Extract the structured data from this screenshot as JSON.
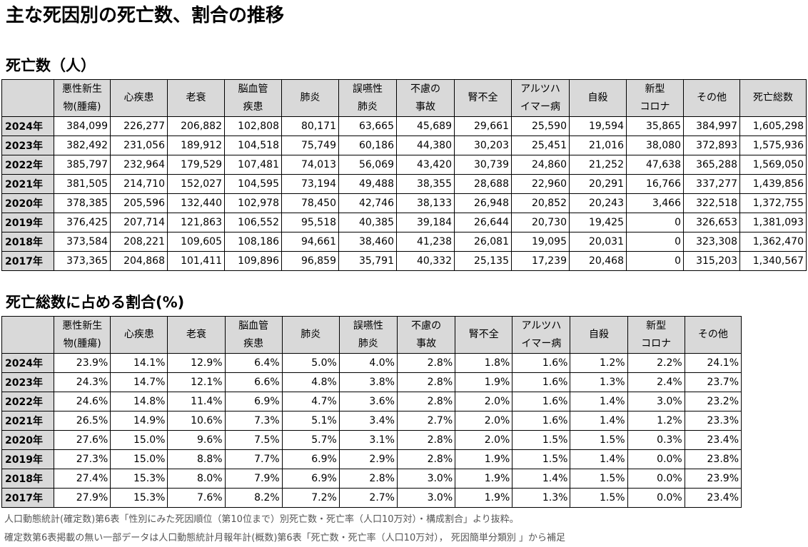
{
  "page": {
    "title": "主な死因別の死亡数、割合の推移"
  },
  "deaths_section": {
    "title": "死亡数（人）",
    "headers": [
      [
        "",
        ""
      ],
      [
        "悪性新生",
        "物(腫瘍)"
      ],
      [
        "心疾患",
        ""
      ],
      [
        "老衰",
        ""
      ],
      [
        "脳血管",
        "疾患"
      ],
      [
        "肺炎",
        ""
      ],
      [
        "誤嚥性",
        "肺炎"
      ],
      [
        "不慮の",
        "事故"
      ],
      [
        "腎不全",
        ""
      ],
      [
        "アルツハ",
        "イマー病"
      ],
      [
        "自殺",
        ""
      ],
      [
        "新型",
        "コロナ"
      ],
      [
        "その他",
        ""
      ],
      [
        "死亡総数",
        ""
      ]
    ],
    "rows": [
      {
        "year": "2024年",
        "values": [
          "384,099",
          "226,277",
          "206,882",
          "102,808",
          "80,171",
          "63,665",
          "45,689",
          "29,661",
          "25,590",
          "19,594",
          "35,865",
          "384,997",
          "1,605,298"
        ]
      },
      {
        "year": "2023年",
        "values": [
          "382,492",
          "231,056",
          "189,912",
          "104,518",
          "75,749",
          "60,186",
          "44,380",
          "30,203",
          "25,451",
          "21,016",
          "38,080",
          "372,893",
          "1,575,936"
        ]
      },
      {
        "year": "2022年",
        "values": [
          "385,797",
          "232,964",
          "179,529",
          "107,481",
          "74,013",
          "56,069",
          "43,420",
          "30,739",
          "24,860",
          "21,252",
          "47,638",
          "365,288",
          "1,569,050"
        ]
      },
      {
        "year": "2021年",
        "values": [
          "381,505",
          "214,710",
          "152,027",
          "104,595",
          "73,194",
          "49,488",
          "38,355",
          "28,688",
          "22,960",
          "20,291",
          "16,766",
          "337,277",
          "1,439,856"
        ]
      },
      {
        "year": "2020年",
        "values": [
          "378,385",
          "205,596",
          "132,440",
          "102,978",
          "78,450",
          "42,746",
          "38,133",
          "26,948",
          "20,852",
          "20,243",
          "3,466",
          "322,518",
          "1,372,755"
        ]
      },
      {
        "year": "2019年",
        "values": [
          "376,425",
          "207,714",
          "121,863",
          "106,552",
          "95,518",
          "40,385",
          "39,184",
          "26,644",
          "20,730",
          "19,425",
          "0",
          "326,653",
          "1,381,093"
        ]
      },
      {
        "year": "2018年",
        "values": [
          "373,584",
          "208,221",
          "109,605",
          "108,186",
          "94,661",
          "38,460",
          "41,238",
          "26,081",
          "19,095",
          "20,031",
          "0",
          "323,308",
          "1,362,470"
        ]
      },
      {
        "year": "2017年",
        "values": [
          "373,365",
          "204,868",
          "101,411",
          "109,896",
          "96,859",
          "35,791",
          "40,332",
          "25,135",
          "17,239",
          "20,468",
          "0",
          "315,203",
          "1,340,567"
        ]
      }
    ]
  },
  "ratio_section": {
    "title": "死亡総数に占める割合(%)",
    "headers": [
      [
        "",
        ""
      ],
      [
        "悪性新生",
        "物(腫瘍)"
      ],
      [
        "心疾患",
        ""
      ],
      [
        "老衰",
        ""
      ],
      [
        "脳血管",
        "疾患"
      ],
      [
        "肺炎",
        ""
      ],
      [
        "誤嚥性",
        "肺炎"
      ],
      [
        "不慮の",
        "事故"
      ],
      [
        "腎不全",
        ""
      ],
      [
        "アルツハ",
        "イマー病"
      ],
      [
        "自殺",
        ""
      ],
      [
        "新型",
        "コロナ"
      ],
      [
        "その他",
        ""
      ]
    ],
    "rows": [
      {
        "year": "2024年",
        "values": [
          "23.9%",
          "14.1%",
          "12.9%",
          "6.4%",
          "5.0%",
          "4.0%",
          "2.8%",
          "1.8%",
          "1.6%",
          "1.2%",
          "2.2%",
          "24.1%"
        ]
      },
      {
        "year": "2023年",
        "values": [
          "24.3%",
          "14.7%",
          "12.1%",
          "6.6%",
          "4.8%",
          "3.8%",
          "2.8%",
          "1.9%",
          "1.6%",
          "1.3%",
          "2.4%",
          "23.7%"
        ]
      },
      {
        "year": "2022年",
        "values": [
          "24.6%",
          "14.8%",
          "11.4%",
          "6.9%",
          "4.7%",
          "3.6%",
          "2.8%",
          "2.0%",
          "1.6%",
          "1.4%",
          "3.0%",
          "23.2%"
        ]
      },
      {
        "year": "2021年",
        "values": [
          "26.5%",
          "14.9%",
          "10.6%",
          "7.3%",
          "5.1%",
          "3.4%",
          "2.7%",
          "2.0%",
          "1.6%",
          "1.4%",
          "1.2%",
          "23.3%"
        ]
      },
      {
        "year": "2020年",
        "values": [
          "27.6%",
          "15.0%",
          "9.6%",
          "7.5%",
          "5.7%",
          "3.1%",
          "2.8%",
          "2.0%",
          "1.5%",
          "1.5%",
          "0.3%",
          "23.4%"
        ]
      },
      {
        "year": "2019年",
        "values": [
          "27.3%",
          "15.0%",
          "8.8%",
          "7.7%",
          "6.9%",
          "2.9%",
          "2.8%",
          "1.9%",
          "1.5%",
          "1.4%",
          "0.0%",
          "23.8%"
        ]
      },
      {
        "year": "2018年",
        "values": [
          "27.4%",
          "15.3%",
          "8.0%",
          "7.9%",
          "6.9%",
          "2.8%",
          "3.0%",
          "1.9%",
          "1.4%",
          "1.5%",
          "0.0%",
          "23.9%"
        ]
      },
      {
        "year": "2017年",
        "values": [
          "27.9%",
          "15.3%",
          "7.6%",
          "8.2%",
          "7.2%",
          "2.7%",
          "3.0%",
          "1.9%",
          "1.3%",
          "1.5%",
          "0.0%",
          "23.4%"
        ]
      }
    ]
  },
  "notes": [
    "人口動態統計(確定数)第6表「性別にみた死因順位（第10位まで）別死亡数・死亡率（人口10万対）・構成割合」より抜粋。",
    "確定数第6表掲載の無い一部データは人口動態統計月報年計(概数)第6表「死亡数・死亡率（人口10万対）， 死因簡単分類別 」から補足"
  ],
  "colors": {
    "header_bg": "#d9d9d9",
    "note_text": "#555555"
  }
}
